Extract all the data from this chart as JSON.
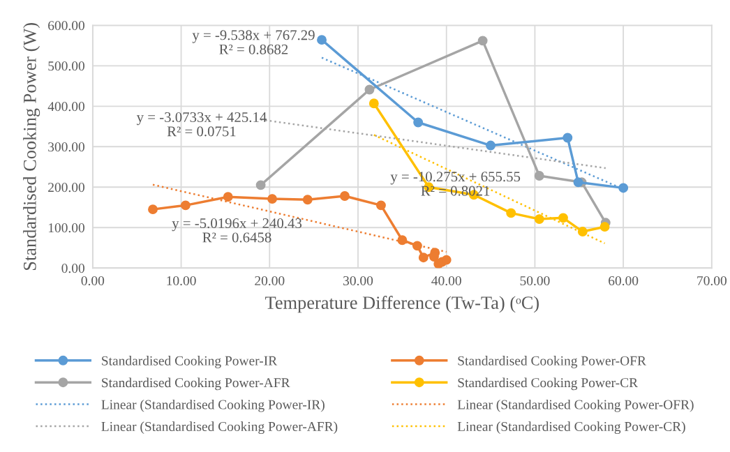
{
  "chart_data": {
    "type": "line",
    "xlabel": "Temperature Difference (Tw-Ta) (ᵒC)",
    "ylabel": "Standardised Cooking Power (W)",
    "xlim": [
      0,
      70
    ],
    "xticks": [
      {
        "value": 0,
        "label": "0.00"
      },
      {
        "value": 10,
        "label": "10.00"
      },
      {
        "value": 20,
        "label": "20.00"
      },
      {
        "value": 30,
        "label": "30.00"
      },
      {
        "value": 40,
        "label": "40.00"
      },
      {
        "value": 50,
        "label": "50.00"
      },
      {
        "value": 60,
        "label": "60.00"
      },
      {
        "value": 70,
        "label": "70.00"
      }
    ],
    "ylim": [
      0,
      600
    ],
    "yticks": [
      {
        "value": 0,
        "label": "0.00"
      },
      {
        "value": 100,
        "label": "100.00"
      },
      {
        "value": 200,
        "label": "200.00"
      },
      {
        "value": 300,
        "label": "300.00"
      },
      {
        "value": 400,
        "label": "400.00"
      },
      {
        "value": 500,
        "label": "500.00"
      },
      {
        "value": 600,
        "label": "600.00"
      }
    ],
    "grid": true,
    "legend": "bottom",
    "series": [
      {
        "name": "Standardised Cooking Power-IR",
        "color": "#5b9bd5",
        "marker": "circle",
        "line_style": "solid",
        "x": [
          25.9,
          36.8,
          45.0,
          53.7,
          54.9,
          60.0
        ],
        "values": [
          564,
          360,
          303,
          322,
          212,
          198
        ]
      },
      {
        "name": "Standardised Cooking Power-OFR",
        "color": "#ed7d31",
        "marker": "circle",
        "line_style": "solid",
        "x": [
          6.8,
          10.5,
          15.3,
          20.3,
          24.3,
          28.5,
          32.6,
          35.0,
          36.7,
          37.4,
          38.7,
          38.6,
          39.1,
          39.5,
          40.0
        ],
        "values": [
          145,
          155,
          176,
          171,
          169,
          178,
          155,
          69,
          55,
          26,
          38,
          28,
          10,
          15,
          20
        ]
      },
      {
        "name": "Standardised Cooking Power-AFR",
        "color": "#a5a5a5",
        "marker": "circle",
        "line_style": "solid",
        "x": [
          19.0,
          31.3,
          44.1,
          50.5,
          55.3,
          58.0
        ],
        "values": [
          205,
          441,
          562,
          228,
          212,
          112
        ]
      },
      {
        "name": "Standardised Cooking Power-CR",
        "color": "#ffc000",
        "marker": "circle",
        "line_style": "solid",
        "x": [
          31.8,
          38.0,
          43.1,
          47.3,
          50.5,
          53.2,
          55.4,
          57.9
        ],
        "values": [
          407,
          200,
          181,
          136,
          121,
          124,
          90,
          102
        ]
      },
      {
        "name": "Linear (Standardised Cooking Power-IR)",
        "color": "#5b9bd5",
        "marker": "none",
        "line_style": "dotted",
        "x": [
          25.9,
          60.0
        ],
        "values": [
          520,
          195
        ]
      },
      {
        "name": "Linear (Standardised Cooking Power-OFR)",
        "color": "#ed7d31",
        "marker": "none",
        "line_style": "dotted",
        "x": [
          6.8,
          40.0
        ],
        "values": [
          206,
          40
        ]
      },
      {
        "name": "Linear (Standardised Cooking Power-AFR)",
        "color": "#a5a5a5",
        "marker": "none",
        "line_style": "dotted",
        "x": [
          19.0,
          58.0
        ],
        "values": [
          367,
          247
        ]
      },
      {
        "name": "Linear (Standardised Cooking Power-CR)",
        "color": "#ffc000",
        "marker": "none",
        "line_style": "dotted",
        "x": [
          31.8,
          57.9
        ],
        "values": [
          329,
          61
        ]
      }
    ],
    "annotations": [
      "y = -9.538x + 767.29\nR² = 0.8682",
      "y = -3.0733x + 425.14\nR² = 0.0751",
      "y = -10.275x + 655.55\nR² = 0.8021",
      "y = -5.0196x + 240.43\nR² = 0.6458"
    ]
  }
}
